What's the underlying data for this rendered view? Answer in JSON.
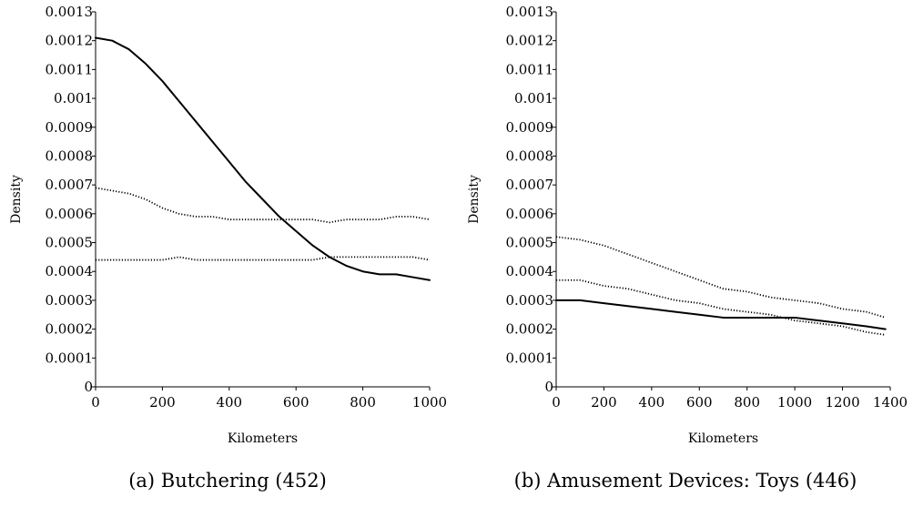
{
  "chart_data": [
    {
      "type": "line",
      "caption": "(a) Butchering (452)",
      "xlabel": "Kilometers",
      "ylabel": "Density",
      "xlim": [
        0,
        1000
      ],
      "ylim": [
        0,
        0.0013
      ],
      "x_ticks": [
        "0",
        "200",
        "400",
        "600",
        "800",
        "1000"
      ],
      "y_ticks": [
        "0",
        "0.0001",
        "0.0002",
        "0.0003",
        "0.0004",
        "0.0005",
        "0.0006",
        "0.0007",
        "0.0008",
        "0.0009",
        "0.001",
        "0.0011",
        "0.0012",
        "0.0013"
      ],
      "grid": false,
      "series": [
        {
          "style": "solid",
          "x": [
            0,
            50,
            100,
            150,
            200,
            250,
            300,
            350,
            400,
            450,
            500,
            550,
            600,
            650,
            700,
            750,
            800,
            850,
            900,
            950,
            1000
          ],
          "y": [
            0.00121,
            0.0012,
            0.00117,
            0.00112,
            0.00106,
            0.00099,
            0.00092,
            0.00085,
            0.00078,
            0.00071,
            0.00065,
            0.00059,
            0.00054,
            0.00049,
            0.00045,
            0.00042,
            0.0004,
            0.00039,
            0.00039,
            0.00038,
            0.00037
          ]
        },
        {
          "style": "dotted",
          "x": [
            0,
            50,
            100,
            150,
            200,
            250,
            300,
            350,
            400,
            450,
            500,
            550,
            600,
            650,
            700,
            750,
            800,
            850,
            900,
            950,
            1000
          ],
          "y": [
            0.00069,
            0.00068,
            0.00067,
            0.00065,
            0.00062,
            0.0006,
            0.00059,
            0.00059,
            0.00058,
            0.00058,
            0.00058,
            0.00058,
            0.00058,
            0.00058,
            0.00057,
            0.00058,
            0.00058,
            0.00058,
            0.00059,
            0.00059,
            0.00058
          ]
        },
        {
          "style": "dotted",
          "x": [
            0,
            50,
            100,
            150,
            200,
            250,
            300,
            350,
            400,
            450,
            500,
            550,
            600,
            650,
            700,
            750,
            800,
            850,
            900,
            950,
            1000
          ],
          "y": [
            0.00044,
            0.00044,
            0.00044,
            0.00044,
            0.00044,
            0.00045,
            0.00044,
            0.00044,
            0.00044,
            0.00044,
            0.00044,
            0.00044,
            0.00044,
            0.00044,
            0.00045,
            0.00045,
            0.00045,
            0.00045,
            0.00045,
            0.00045,
            0.00044
          ]
        }
      ]
    },
    {
      "type": "line",
      "caption": "(b) Amusement Devices: Toys (446)",
      "xlabel": "Kilometers",
      "ylabel": "Density",
      "xlim": [
        0,
        1400
      ],
      "ylim": [
        0,
        0.0013
      ],
      "x_ticks": [
        "0",
        "200",
        "400",
        "600",
        "800",
        "1000",
        "1200",
        "1400"
      ],
      "y_ticks": [
        "0",
        "0.0001",
        "0.0002",
        "0.0003",
        "0.0004",
        "0.0005",
        "0.0006",
        "0.0007",
        "0.0008",
        "0.0009",
        "0.001",
        "0.0011",
        "0.0012",
        "0.0013"
      ],
      "grid": false,
      "series": [
        {
          "style": "solid",
          "x": [
            0,
            100,
            200,
            300,
            400,
            500,
            600,
            700,
            800,
            900,
            1000,
            1100,
            1200,
            1300,
            1380
          ],
          "y": [
            0.0003,
            0.0003,
            0.00029,
            0.00028,
            0.00027,
            0.00026,
            0.00025,
            0.00024,
            0.00024,
            0.00024,
            0.00024,
            0.00023,
            0.00022,
            0.00021,
            0.0002
          ]
        },
        {
          "style": "dotted",
          "x": [
            0,
            100,
            200,
            300,
            400,
            500,
            600,
            700,
            800,
            900,
            1000,
            1100,
            1200,
            1300,
            1380
          ],
          "y": [
            0.00052,
            0.00051,
            0.00049,
            0.00046,
            0.00043,
            0.0004,
            0.00037,
            0.00034,
            0.00033,
            0.00031,
            0.0003,
            0.00029,
            0.00027,
            0.00026,
            0.00024
          ]
        },
        {
          "style": "dotted",
          "x": [
            0,
            100,
            200,
            300,
            400,
            500,
            600,
            700,
            800,
            900,
            1000,
            1100,
            1200,
            1300,
            1380
          ],
          "y": [
            0.00037,
            0.00037,
            0.00035,
            0.00034,
            0.00032,
            0.0003,
            0.00029,
            0.00027,
            0.00026,
            0.00025,
            0.00023,
            0.00022,
            0.00021,
            0.00019,
            0.00018
          ]
        }
      ]
    }
  ]
}
